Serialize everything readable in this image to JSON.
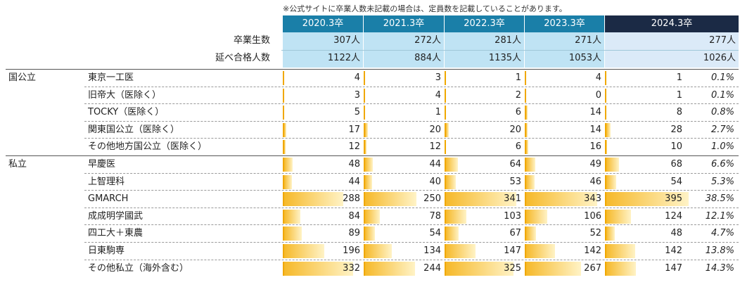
{
  "note": "※公式サイトに卒業人数未記載の場合は、定員数を記載していることがあります。",
  "years": [
    "2020.3卒",
    "2021.3卒",
    "2022.3卒",
    "2023.3卒",
    "2024.3卒"
  ],
  "stats": [
    {
      "label": "卒業生数",
      "values": [
        "307人",
        "272人",
        "281人",
        "271人",
        "277人"
      ]
    },
    {
      "label": "延べ合格人数",
      "values": [
        "1122人",
        "884人",
        "1135人",
        "1053人",
        "1026人"
      ]
    }
  ],
  "sections": [
    {
      "name": "国公立",
      "rows": [
        {
          "label": "東京一工医",
          "values": [
            4,
            3,
            1,
            4,
            1
          ],
          "pct": "0.1%"
        },
        {
          "label": "旧帝大（医除く）",
          "values": [
            3,
            4,
            2,
            0,
            1
          ],
          "pct": "0.1%"
        },
        {
          "label": "TOCKY（医除く）",
          "values": [
            5,
            1,
            6,
            14,
            8
          ],
          "pct": "0.8%"
        },
        {
          "label": "関東国公立（医除く）",
          "values": [
            17,
            20,
            20,
            14,
            28
          ],
          "pct": "2.7%"
        },
        {
          "label": "その他地方国公立（医除く）",
          "values": [
            12,
            12,
            6,
            16,
            10
          ],
          "pct": "1.0%"
        }
      ]
    },
    {
      "name": "私立",
      "rows": [
        {
          "label": "早慶医",
          "values": [
            48,
            44,
            64,
            49,
            68
          ],
          "pct": "6.6%"
        },
        {
          "label": "上智理科",
          "values": [
            44,
            40,
            53,
            46,
            54
          ],
          "pct": "5.3%"
        },
        {
          "label": "GMARCH",
          "values": [
            288,
            250,
            341,
            343,
            395
          ],
          "pct": "38.5%"
        },
        {
          "label": "成成明学國武",
          "values": [
            84,
            78,
            103,
            106,
            124
          ],
          "pct": "12.1%"
        },
        {
          "label": "四工大＋東農",
          "values": [
            89,
            54,
            67,
            52,
            48
          ],
          "pct": "4.7%"
        },
        {
          "label": "日東駒専",
          "values": [
            196,
            134,
            147,
            142,
            142
          ],
          "pct": "13.8%"
        },
        {
          "label": "その他私立（海外含む）",
          "values": [
            332,
            244,
            325,
            267,
            147
          ],
          "pct": "14.3%"
        }
      ]
    }
  ],
  "colors": {
    "bar": "#f6b92a",
    "header_old": "#1a7fa8",
    "header_new": "#1b2a45"
  }
}
